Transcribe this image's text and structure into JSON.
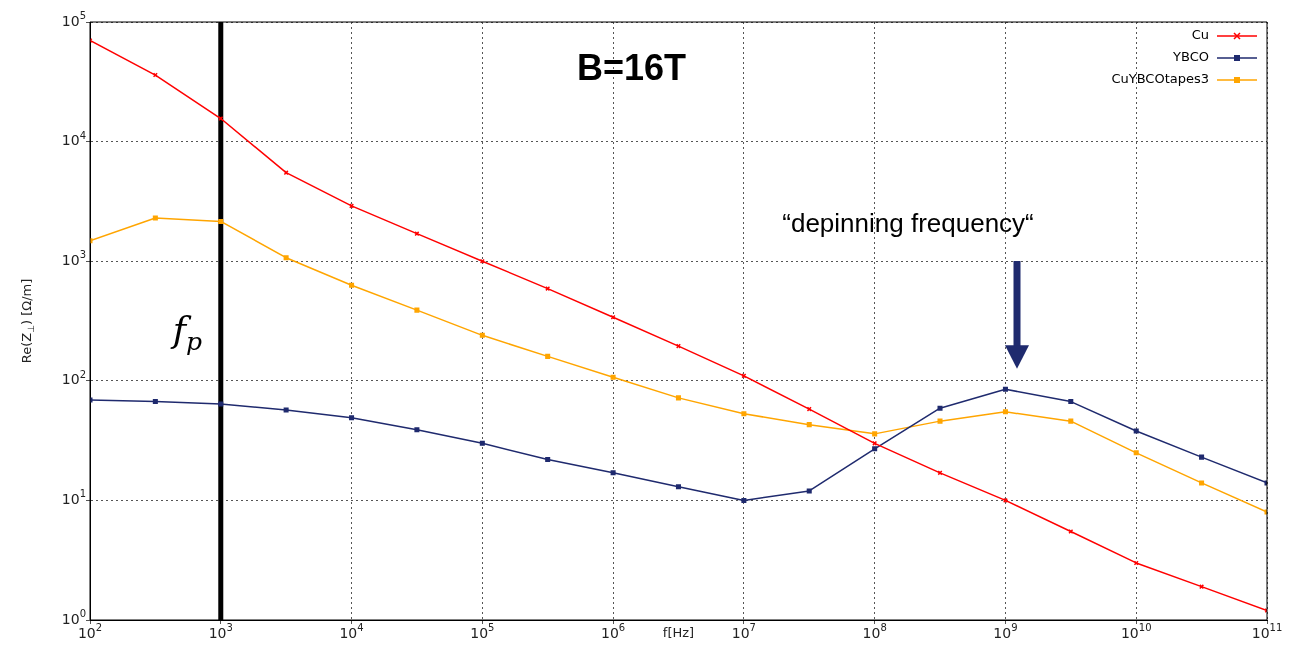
{
  "chart_data": {
    "type": "line",
    "title": "B=16T",
    "xlabel": "f[Hz]",
    "ylabel": "Re(Z$_{⊥}$) [Ω/m]",
    "x": [
      100,
      316,
      1000,
      3160,
      10000,
      31600,
      100000,
      316000,
      1000000,
      3160000,
      10000000,
      31600000,
      100000000,
      316000000,
      1000000000,
      3160000000,
      10000000000,
      31600000000,
      100000000000
    ],
    "series": [
      {
        "name": "Cu",
        "color": "#ff0000",
        "marker": "cross",
        "values": [
          70000,
          36000,
          15600,
          5500,
          2900,
          1700,
          1000,
          590,
          340,
          195,
          110,
          58,
          30,
          17,
          10,
          5.5,
          3.0,
          1.9,
          1.2
        ]
      },
      {
        "name": "YBCO",
        "color": "#1f2a6e",
        "marker": "square",
        "values": [
          69,
          67,
          64,
          57,
          49,
          39,
          30,
          22,
          17,
          13,
          10,
          12,
          27,
          59,
          85,
          67,
          38,
          23,
          14
        ]
      },
      {
        "name": "CuYBCOtapes3",
        "color": "#ffa500",
        "marker": "square",
        "values": [
          1480,
          2300,
          2150,
          1070,
          630,
          390,
          240,
          160,
          107,
          72,
          53,
          43,
          36,
          46,
          55,
          46,
          25,
          14,
          8
        ]
      }
    ],
    "log": "xy",
    "xlim": [
      100,
      100000000000
    ],
    "ylim": [
      1,
      100000
    ],
    "xticks": [
      {
        "value": 100,
        "label": "10$^{2}$"
      },
      {
        "value": 1000,
        "label": "10$^{3}$"
      },
      {
        "value": 10000,
        "label": "10$^{4}$"
      },
      {
        "value": 100000,
        "label": "10$^{5}$"
      },
      {
        "value": 1000000,
        "label": "10$^{6}$"
      },
      {
        "value": 10000000,
        "label": "10$^{7}$"
      },
      {
        "value": 100000000,
        "label": "10$^{8}$"
      },
      {
        "value": 1000000000,
        "label": "10$^{9}$"
      },
      {
        "value": 10000000000,
        "label": "10$^{10}$"
      },
      {
        "value": 100000000000,
        "label": "10$^{11}$"
      }
    ],
    "yticks": [
      {
        "value": 1,
        "label": "10$^{0}$"
      },
      {
        "value": 10,
        "label": "10$^{1}$"
      },
      {
        "value": 100,
        "label": "10$^{2}$"
      },
      {
        "value": 1000,
        "label": "10$^{3}$"
      },
      {
        "value": 10000,
        "label": "10$^{4}$"
      },
      {
        "value": 100000,
        "label": "10$^{5}$"
      }
    ],
    "grid": true,
    "legend": "top right",
    "line_style": "solid",
    "ref_lines": [
      {
        "axis": "x",
        "value": 1000,
        "label": "f$_{p}$",
        "color": "#000000",
        "line_style": "solid"
      }
    ],
    "annotations": [
      "“depinning frequency“"
    ]
  }
}
